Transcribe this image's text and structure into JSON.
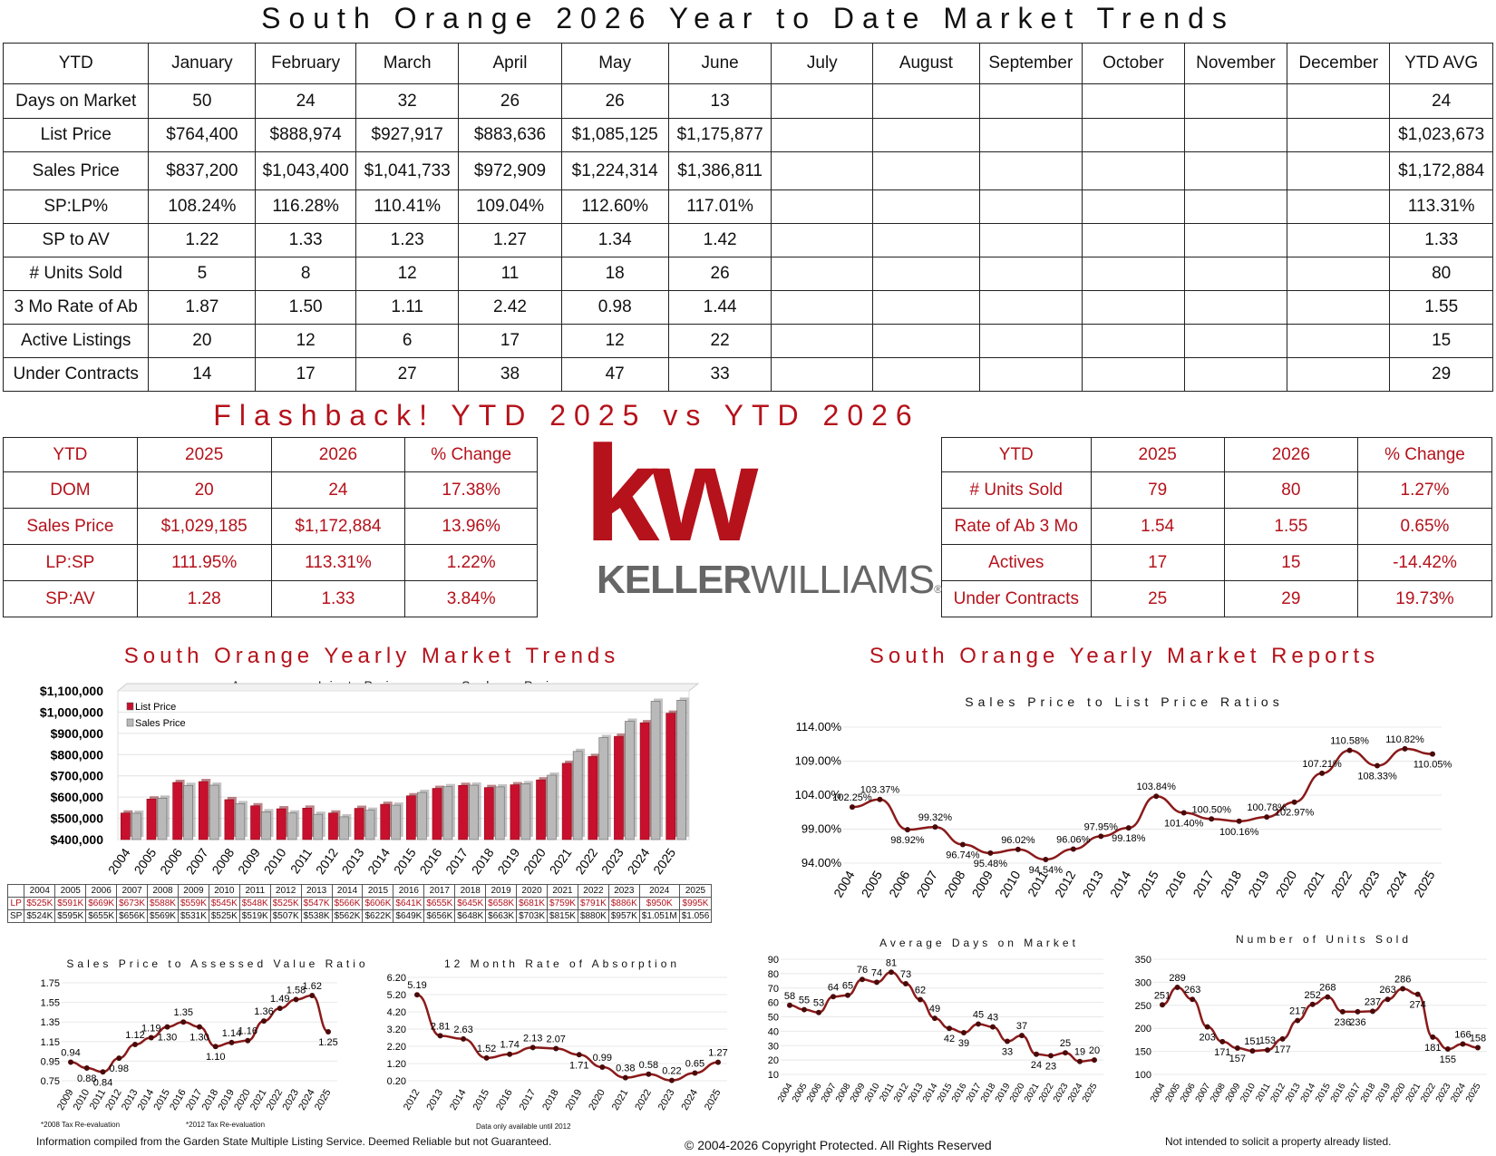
{
  "title": "South Orange 2026 Year to Date Market Trends",
  "main_table": {
    "headers": [
      "YTD",
      "January",
      "February",
      "March",
      "April",
      "May",
      "June",
      "July",
      "August",
      "September",
      "October",
      "November",
      "December",
      "YTD AVG"
    ],
    "rows": [
      [
        "Days on Market",
        "50",
        "24",
        "32",
        "26",
        "26",
        "13",
        "",
        "",
        "",
        "",
        "",
        "",
        "24"
      ],
      [
        "List Price",
        "$764,400",
        "$888,974",
        "$927,917",
        "$883,636",
        "$1,085,125",
        "$1,175,877",
        "",
        "",
        "",
        "",
        "",
        "",
        "$1,023,673"
      ],
      [
        "Sales Price",
        "$837,200",
        "$1,043,400",
        "$1,041,733",
        "$972,909",
        "$1,224,314",
        "$1,386,811",
        "",
        "",
        "",
        "",
        "",
        "",
        "$1,172,884"
      ],
      [
        "SP:LP%",
        "108.24%",
        "116.28%",
        "110.41%",
        "109.04%",
        "112.60%",
        "117.01%",
        "",
        "",
        "",
        "",
        "",
        "",
        "113.31%"
      ],
      [
        "SP to AV",
        "1.22",
        "1.33",
        "1.23",
        "1.27",
        "1.34",
        "1.42",
        "",
        "",
        "",
        "",
        "",
        "",
        "1.33"
      ],
      [
        "# Units Sold",
        "5",
        "8",
        "12",
        "11",
        "18",
        "26",
        "",
        "",
        "",
        "",
        "",
        "",
        "80"
      ],
      [
        "3 Mo Rate of Ab",
        "1.87",
        "1.50",
        "1.11",
        "2.42",
        "0.98",
        "1.44",
        "",
        "",
        "",
        "",
        "",
        "",
        "1.55"
      ],
      [
        "Active Listings",
        "20",
        "12",
        "6",
        "17",
        "12",
        "22",
        "",
        "",
        "",
        "",
        "",
        "",
        "15"
      ],
      [
        "Under Contracts",
        "14",
        "17",
        "27",
        "38",
        "47",
        "33",
        "",
        "",
        "",
        "",
        "",
        "",
        "29"
      ]
    ]
  },
  "flashback": {
    "title": "Flashback!  YTD 2025 vs YTD 2026",
    "left": {
      "headers": [
        "YTD",
        "2025",
        "2026",
        "% Change"
      ],
      "rows": [
        [
          "DOM",
          "20",
          "24",
          "17.38%"
        ],
        [
          "Sales Price",
          "$1,029,185",
          "$1,172,884",
          "13.96%"
        ],
        [
          "LP:SP",
          "111.95%",
          "113.31%",
          "1.22%"
        ],
        [
          "SP:AV",
          "1.28",
          "1.33",
          "3.84%"
        ]
      ]
    },
    "right": {
      "headers": [
        "YTD",
        "2025",
        "2026",
        "% Change"
      ],
      "rows": [
        [
          "# Units Sold",
          "79",
          "80",
          "1.27%"
        ],
        [
          "Rate of Ab 3 Mo",
          "1.54",
          "1.55",
          "0.65%"
        ],
        [
          "Actives",
          "17",
          "15",
          "-14.42%"
        ],
        [
          "Under Contracts",
          "25",
          "29",
          "19.73%"
        ]
      ]
    }
  },
  "logo": {
    "mark": "kw",
    "word1": "KELLER",
    "word2": "WILLIAMS",
    "reg": "®",
    "color": "#b5121b"
  },
  "section_left": "South Orange Yearly Market Trends",
  "section_right": "South Orange Yearly Market Reports",
  "year_table": {
    "years": [
      "2004",
      "2005",
      "2006",
      "2007",
      "2008",
      "2009",
      "2010",
      "2011",
      "2012",
      "2013",
      "2014",
      "2015",
      "2016",
      "2017",
      "2018",
      "2019",
      "2020",
      "2021",
      "2022",
      "2023",
      "2024",
      "2025"
    ],
    "lp_label": "LP",
    "sp_label": "SP",
    "lp": [
      "$525K",
      "$591K",
      "$669K",
      "$673K",
      "$588K",
      "$559K",
      "$545K",
      "$548K",
      "$525K",
      "$547K",
      "$566K",
      "$606K",
      "$641K",
      "$655K",
      "$645K",
      "$658K",
      "$681K",
      "$759K",
      "$791K",
      "$886K",
      "$950K",
      "$995K"
    ],
    "sp": [
      "$524K",
      "$595K",
      "$655K",
      "$656K",
      "$569K",
      "$531K",
      "$525K",
      "$519K",
      "$507K",
      "$538K",
      "$562K",
      "$622K",
      "$649K",
      "$656K",
      "$648K",
      "$663K",
      "$703K",
      "$815K",
      "$880K",
      "$957K",
      "$1.051M",
      "$1.056"
    ]
  },
  "footer": {
    "left": "Information compiled from the Garden State Multiple Listing Service.  Deemed Reliable but not Guaranteed.",
    "center": "© 2004-2026 Copyright Protected.  All Rights Reserved",
    "right": "Not intended to solicit a property already listed.",
    "note1": "*2008 Tax Re-evaluation",
    "note2": "*2012 Tax Re-evaluation",
    "note3": "Data only available until 2012"
  },
  "chart_data": [
    {
      "id": "lp-vs-sp",
      "type": "bar",
      "title": "Average List Price vs. Sales Price",
      "categories": [
        "2004",
        "2005",
        "2006",
        "2007",
        "2008",
        "2009",
        "2010",
        "2011",
        "2012",
        "2013",
        "2014",
        "2015",
        "2016",
        "2017",
        "2018",
        "2019",
        "2020",
        "2021",
        "2022",
        "2023",
        "2024",
        "2025"
      ],
      "series": [
        {
          "name": "List Price",
          "color": "#c8102e",
          "values": [
            525,
            591,
            669,
            673,
            588,
            559,
            545,
            548,
            525,
            547,
            566,
            606,
            641,
            655,
            645,
            658,
            681,
            759,
            791,
            886,
            950,
            995
          ]
        },
        {
          "name": "Sales Price",
          "color": "#b9b9b9",
          "values": [
            524,
            595,
            655,
            656,
            569,
            531,
            525,
            519,
            507,
            538,
            562,
            622,
            649,
            656,
            648,
            663,
            703,
            815,
            880,
            957,
            1051,
            1056
          ]
        }
      ],
      "yticks": [
        "$400,000",
        "$500,000",
        "$600,000",
        "$700,000",
        "$800,000",
        "$900,000",
        "$1,000,000",
        "$1,100,000"
      ],
      "ylim": [
        400,
        1100
      ],
      "legend": "top-left"
    },
    {
      "id": "sp-lp-ratio",
      "type": "line",
      "title": "Sales Price to List Price Ratios",
      "x": [
        "2004",
        "2005",
        "2006",
        "2007",
        "2008",
        "2009",
        "2010",
        "2011",
        "2012",
        "2013",
        "2014",
        "2015",
        "2016",
        "2017",
        "2018",
        "2019",
        "2020",
        "2021",
        "2022",
        "2023",
        "2024",
        "2025"
      ],
      "values": [
        102.25,
        103.37,
        98.92,
        99.32,
        96.74,
        95.48,
        96.02,
        94.54,
        96.06,
        97.95,
        99.18,
        103.84,
        101.4,
        100.5,
        100.16,
        100.78,
        102.97,
        107.21,
        110.58,
        108.33,
        110.82,
        110.05
      ],
      "labels": [
        "102.25%",
        "103.37%",
        "98.92%",
        "99.32%",
        "96.74%",
        "95.48%",
        "96.02%",
        "94.54%",
        "96.06%",
        "97.95%",
        "99.18%",
        "103.84%",
        "101.40%",
        "100.50%",
        "100.16%",
        "100.78%",
        "102.97%",
        "107.21%",
        "110.58%",
        "108.33%",
        "110.82%",
        "110.05%"
      ],
      "yticks": [
        "94.00%",
        "99.00%",
        "104.00%",
        "109.00%",
        "114.00%"
      ],
      "ylim": [
        94,
        114
      ]
    },
    {
      "id": "sp-av-ratio",
      "type": "line",
      "title": "Sales Price to Assessed Value Ratio",
      "x": [
        "2009",
        "2010",
        "2011",
        "2012",
        "2013",
        "2014",
        "2015",
        "2016",
        "2017",
        "2018",
        "2019",
        "2020",
        "2021",
        "2022",
        "2023",
        "2024",
        "2025"
      ],
      "values": [
        0.94,
        0.88,
        0.84,
        0.98,
        1.12,
        1.19,
        1.3,
        1.35,
        1.3,
        1.1,
        1.14,
        1.16,
        1.36,
        1.49,
        1.58,
        1.62,
        1.25
      ],
      "labels": [
        "0.94",
        "0.88",
        "0.84",
        "0.98",
        "1.12",
        "1.19",
        "1.30",
        "1.35",
        "1.30",
        "1.10",
        "1.14",
        "1.16",
        "1.36",
        "1.49",
        "1.58",
        "1.62",
        "1.25"
      ],
      "yticks": [
        "0.75",
        "0.95",
        "1.15",
        "1.35",
        "1.55",
        "1.75"
      ],
      "ylim": [
        0.75,
        1.75
      ]
    },
    {
      "id": "absorption",
      "type": "line",
      "title": "12 Month Rate of Absorption",
      "x": [
        "2012",
        "2013",
        "2014",
        "2015",
        "2016",
        "2017",
        "2018",
        "2019",
        "2020",
        "2021",
        "2022",
        "2023",
        "2024",
        "2025"
      ],
      "values": [
        5.19,
        2.81,
        2.63,
        1.52,
        1.74,
        2.13,
        2.07,
        1.71,
        0.99,
        0.38,
        0.58,
        0.22,
        0.65,
        1.27
      ],
      "labels": [
        "5.19",
        "2.81",
        "2.63",
        "1.52",
        "1.74",
        "2.13",
        "2.07",
        "1.71",
        "0.99",
        "0.38",
        "0.58",
        "0.22",
        "0.65",
        "1.27"
      ],
      "yticks": [
        "0.20",
        "1.20",
        "2.20",
        "3.20",
        "4.20",
        "5.20",
        "6.20"
      ],
      "ylim": [
        0.2,
        6.2
      ]
    },
    {
      "id": "dom",
      "type": "line",
      "title": "Average Days on Market",
      "x": [
        "2004",
        "2005",
        "2006",
        "2007",
        "2008",
        "2009",
        "2010",
        "2011",
        "2012",
        "2013",
        "2014",
        "2015",
        "2016",
        "2017",
        "2018",
        "2019",
        "2020",
        "2021",
        "2022",
        "2023",
        "2024",
        "2025"
      ],
      "values": [
        58,
        55,
        53,
        64,
        65,
        76,
        74,
        81,
        73,
        62,
        49,
        42,
        39,
        45,
        43,
        33,
        37,
        24,
        23,
        25,
        19,
        20
      ],
      "labels": [
        "58",
        "55",
        "53",
        "64",
        "65",
        "76",
        "74",
        "81",
        "73",
        "62",
        "49",
        "42",
        "39",
        "45",
        "43",
        "33",
        "37",
        "24",
        "23",
        "25",
        "19",
        "20"
      ],
      "yticks": [
        "10",
        "20",
        "30",
        "40",
        "50",
        "60",
        "70",
        "80",
        "90"
      ],
      "ylim": [
        10,
        90
      ]
    },
    {
      "id": "units-sold",
      "type": "line",
      "title": "Number of Units Sold",
      "x": [
        "2004",
        "2005",
        "2006",
        "2007",
        "2008",
        "2009",
        "2010",
        "2011",
        "2012",
        "2013",
        "2014",
        "2015",
        "2016",
        "2017",
        "2018",
        "2019",
        "2020",
        "2021",
        "2022",
        "2023",
        "2024",
        "2025"
      ],
      "values": [
        251,
        289,
        263,
        203,
        171,
        157,
        151,
        153,
        177,
        217,
        252,
        268,
        236,
        236,
        237,
        263,
        286,
        274,
        181,
        155,
        166,
        158
      ],
      "labels": [
        "251",
        "289",
        "263",
        "203",
        "171",
        "157",
        "151",
        "153",
        "177",
        "217",
        "252",
        "268",
        "236",
        "236",
        "237",
        "263",
        "286",
        "274",
        "181",
        "155",
        "166",
        "158"
      ],
      "yticks": [
        "100",
        "150",
        "200",
        "250",
        "300",
        "350"
      ],
      "ylim": [
        100,
        350
      ]
    }
  ]
}
